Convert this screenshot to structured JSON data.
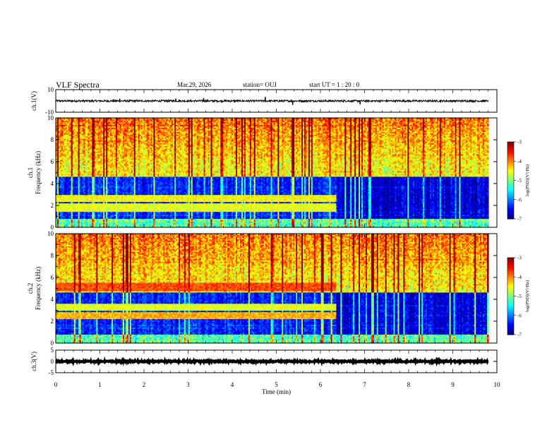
{
  "header": {
    "title": "VLF Spectra",
    "date": "Mar.29, 2026",
    "station": "station= OUJ",
    "start": "start  UT =  1 : 20 : 0"
  },
  "chart_data": [
    {
      "type": "line",
      "panel": "ch1-waveform",
      "ylabel": "ch.1(V)",
      "ylim": [
        -10,
        10
      ],
      "yticks": [
        10,
        -10
      ],
      "xlim": [
        0,
        10
      ],
      "baseline": 0,
      "noise_amplitude": 0.8,
      "spikes": [
        {
          "x": 4.75,
          "y": 3.5
        },
        {
          "x": 5.37,
          "y": -3.5
        },
        {
          "x": 6.9,
          "y": -3.0
        },
        {
          "x": 3.35,
          "y": 2.5
        },
        {
          "x": 2.72,
          "y": 2.0
        },
        {
          "x": 1.45,
          "y": 2.0
        }
      ]
    },
    {
      "type": "heatmap",
      "panel": "ch1-spectrogram",
      "ylabel": "ch.1\nFrequency (kHz)",
      "ylim": [
        0,
        10
      ],
      "yticks": [
        0,
        2,
        4,
        6,
        8,
        10
      ],
      "xlim": [
        0,
        10
      ],
      "data_end_min": 9.8,
      "zlabel": "log(PSD)(V²/Hz)",
      "zlim": [
        -7,
        -3
      ],
      "zticks": [
        -3,
        -4,
        -5,
        -6,
        -7
      ],
      "colormap": "jet",
      "change_time_min": 6.35,
      "noise_band_khz": [
        0.8,
        4.6
      ],
      "emission_bands": [
        {
          "f_khz": 1.8,
          "level": -4.6,
          "t_end_min": 6.35
        },
        {
          "f_khz": 2.6,
          "level": -4.5,
          "t_end_min": 6.35
        }
      ]
    },
    {
      "type": "heatmap",
      "panel": "ch2-spectrogram",
      "ylabel": "ch.2\nFrequency (kHz)",
      "ylim": [
        0,
        10
      ],
      "yticks": [
        0,
        2,
        4,
        6,
        8,
        10
      ],
      "xlim": [
        0,
        10
      ],
      "data_end_min": 9.8,
      "zlabel": "log(PSD)(V²/Hz)",
      "zlim": [
        -7,
        -3
      ],
      "zticks": [
        -3,
        -4,
        -5,
        -6,
        -7
      ],
      "colormap": "jet",
      "change_time_min": 6.35,
      "noise_band_khz": [
        0.8,
        4.6
      ],
      "emission_bands": [
        {
          "f_khz": 5.1,
          "level": -3.8,
          "t_end_min": 6.35
        },
        {
          "f_khz": 2.5,
          "level": -4.2,
          "t_end_min": 6.35
        },
        {
          "f_khz": 3.3,
          "level": -4.6,
          "t_end_min": 6.35
        }
      ]
    },
    {
      "type": "line",
      "panel": "ch3-waveform",
      "ylabel": "ch.3(V)",
      "ylim": [
        -5,
        5
      ],
      "yticks": [
        5,
        0,
        -5
      ],
      "xlim": [
        0,
        10
      ],
      "baseline": 0,
      "noise_amplitude": 0.3
    }
  ],
  "xaxis": {
    "label": "Time (min)",
    "ticks": [
      0,
      1,
      2,
      3,
      4,
      5,
      6,
      7,
      8,
      9,
      10
    ]
  },
  "colors": {
    "trace": "#000000",
    "axis": "#000000",
    "background": "#ffffff"
  }
}
